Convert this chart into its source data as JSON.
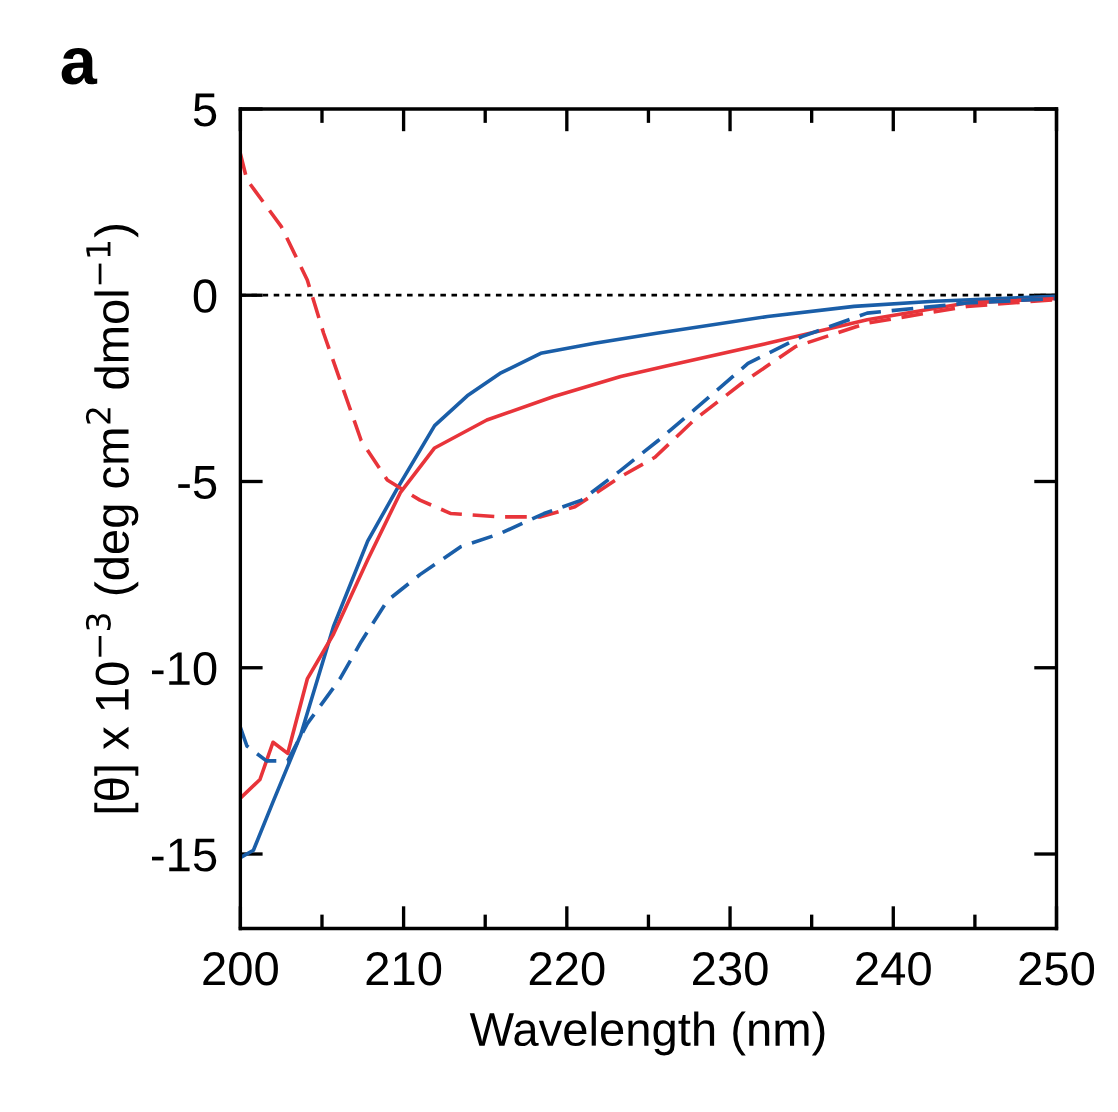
{
  "chart_data": {
    "type": "line",
    "xlabel": "Wavelength (nm)",
    "ylabel": "[θ] x 10$^{−3}$ (deg cm$^{2}$ dmol$^{−1}$)",
    "annotations": [
      "a"
    ],
    "xlim": [
      200,
      250
    ],
    "xticks": [
      200,
      210,
      220,
      230,
      240,
      250
    ],
    "ylim": [
      -17,
      5
    ],
    "yticks": [
      5,
      0,
      -5,
      -10,
      -15
    ],
    "grid": false,
    "legend": false,
    "ref_lines": [
      {
        "axis": "y",
        "value": 0,
        "color": "#000000",
        "line_style": "dotted"
      }
    ],
    "series": [
      {
        "color": "#1a5ea8",
        "line_style": "solid",
        "x": [
          200,
          200.8,
          202.0,
          203.7,
          205.7,
          207.8,
          209.6,
          211.9,
          213.9,
          215.9,
          218.4,
          221.7,
          225.5,
          232.3,
          237.6,
          242.5,
          249.9
        ],
        "values": [
          -15.1,
          -14.9,
          -13.6,
          -11.8,
          -8.9,
          -6.6,
          -5.2,
          -3.5,
          -2.7,
          -2.1,
          -1.56,
          -1.29,
          -1.02,
          -0.57,
          -0.3,
          -0.16,
          -0.03
        ]
      },
      {
        "color": "#e8343a",
        "line_style": "solid",
        "x": [
          200,
          201.2,
          202.0,
          202.9,
          204.1,
          205.7,
          207.8,
          209.8,
          211.9,
          215.1,
          219.2,
          223.3,
          226.1,
          232.3,
          238.4,
          244.5,
          249.9
        ],
        "values": [
          -13.5,
          -13.0,
          -12.0,
          -12.3,
          -10.3,
          -9.1,
          -7.1,
          -5.3,
          -4.1,
          -3.35,
          -2.72,
          -2.18,
          -1.9,
          -1.29,
          -0.66,
          -0.21,
          -0.09
        ]
      },
      {
        "color": "#e8343a",
        "line_style": "dashed",
        "x": [
          200,
          200.4,
          202.5,
          204.1,
          205.1,
          206.1,
          207.4,
          209.0,
          211.0,
          212.9,
          215.9,
          218.4,
          220.5,
          223.3,
          225.4,
          227.8,
          230.7,
          234.0,
          238.4,
          244.5,
          249.9
        ],
        "values": [
          3.8,
          3.1,
          1.85,
          0.41,
          -1.02,
          -2.27,
          -3.9,
          -4.96,
          -5.5,
          -5.86,
          -5.95,
          -5.95,
          -5.68,
          -4.87,
          -4.35,
          -3.35,
          -2.37,
          -1.38,
          -0.75,
          -0.3,
          -0.12
        ]
      },
      {
        "color": "#1a5ea8",
        "line_style": "dashed",
        "x": [
          200,
          200.4,
          201.6,
          202.9,
          204.1,
          206.1,
          207.4,
          209.0,
          211.0,
          213.5,
          215.9,
          218.6,
          220.9,
          223.3,
          225.6,
          227.8,
          231.1,
          234.4,
          238.4,
          244.5,
          249.9
        ],
        "values": [
          -11.6,
          -12.1,
          -12.5,
          -12.5,
          -11.5,
          -10.3,
          -9.3,
          -8.2,
          -7.5,
          -6.75,
          -6.4,
          -5.86,
          -5.5,
          -4.7,
          -3.9,
          -3.08,
          -1.83,
          -1.11,
          -0.48,
          -0.21,
          -0.09
        ]
      }
    ]
  }
}
